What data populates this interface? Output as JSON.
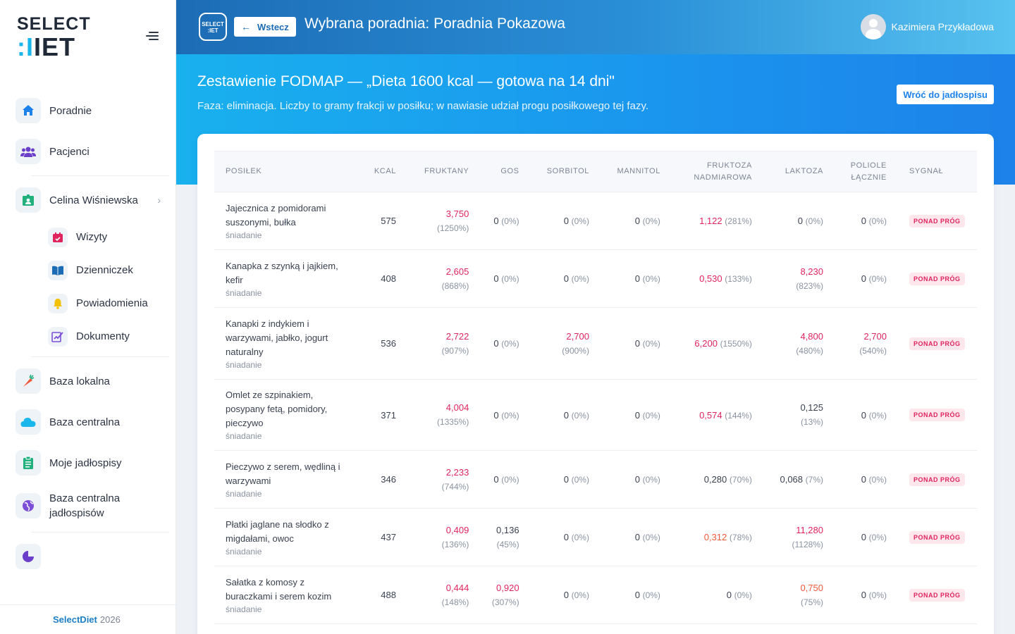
{
  "sidebar": {
    "logo_top": "SELECT",
    "logo_bottom_a": ":I",
    "logo_bottom_b": "IET",
    "items": [
      {
        "label": "Poradnie",
        "icon": "home-icon"
      },
      {
        "label": "Pacjenci",
        "icon": "users-icon"
      }
    ],
    "patient": {
      "label": "Celina Wiśniewska",
      "icon": "id-badge-icon"
    },
    "sub_items": [
      {
        "label": "Wizyty",
        "icon": "calendar-icon"
      },
      {
        "label": "Dzienniczek",
        "icon": "book-icon"
      },
      {
        "label": "Powiadomienia",
        "icon": "bell-icon"
      },
      {
        "label": "Dokumenty",
        "icon": "document-icon"
      }
    ],
    "bases": [
      {
        "label": "Baza lokalna",
        "icon": "carrot-icon"
      },
      {
        "label": "Baza centralna",
        "icon": "cloud-icon"
      },
      {
        "label": "Moje jadłospisy",
        "icon": "clipboard-icon"
      },
      {
        "label": "Baza centralna jadłospisów",
        "icon": "globe-icon"
      }
    ],
    "footer_brand": "SelectDiet",
    "footer_year": "2026"
  },
  "topbar": {
    "logo_text_1": "SELECT",
    "logo_text_2": ":IET",
    "back_label": "Wstecz",
    "title": "Wybrana poradnia: Poradnia Pokazowa",
    "user_name": "Kazimiera Przykładowa"
  },
  "page": {
    "title": "Zestawienie FODMAP — „Dieta 1600 kcal — gotowa na 14 dni\"",
    "subtitle": "Faza: eliminacja. Liczby to gramy frakcji w posiłku; w nawiasie udział progu posiłkowego tej fazy.",
    "back_menu_label": "Wróć do jadłospisu"
  },
  "table": {
    "headers": [
      "POSIŁEK",
      "KCAL",
      "FRUKTANY",
      "GOS",
      "SORBITOL",
      "MANNITOL",
      "FRUKTOZA NADMIAROWA",
      "LAKTOZA",
      "POLIOLE ŁĄCZNIE",
      "SYGNAŁ"
    ],
    "rows": [
      {
        "meal": "Jajecznica z pomidorami suszonymi, bułka",
        "type": "śniadanie",
        "kcal": "575",
        "cells": [
          {
            "v": "3,750",
            "p": "(1250%)",
            "c": "red",
            "s": true
          },
          {
            "v": "0",
            "p": "(0%)",
            "c": "",
            "s": false
          },
          {
            "v": "0",
            "p": "(0%)",
            "c": "",
            "s": false
          },
          {
            "v": "0",
            "p": "(0%)",
            "c": "",
            "s": false
          },
          {
            "v": "1,122",
            "p": "(281%)",
            "c": "red",
            "s": false
          },
          {
            "v": "0",
            "p": "(0%)",
            "c": "",
            "s": false
          },
          {
            "v": "0",
            "p": "(0%)",
            "c": "",
            "s": false
          }
        ],
        "signal": "PONAD PRÓG"
      },
      {
        "meal": "Kanapka z szynką i jajkiem, kefir",
        "type": "śniadanie",
        "kcal": "408",
        "cells": [
          {
            "v": "2,605",
            "p": "(868%)",
            "c": "red",
            "s": true
          },
          {
            "v": "0",
            "p": "(0%)",
            "c": "",
            "s": false
          },
          {
            "v": "0",
            "p": "(0%)",
            "c": "",
            "s": false
          },
          {
            "v": "0",
            "p": "(0%)",
            "c": "",
            "s": false
          },
          {
            "v": "0,530",
            "p": "(133%)",
            "c": "red",
            "s": false
          },
          {
            "v": "8,230",
            "p": "(823%)",
            "c": "red",
            "s": true
          },
          {
            "v": "0",
            "p": "(0%)",
            "c": "",
            "s": false
          }
        ],
        "signal": "PONAD PRÓG"
      },
      {
        "meal": "Kanapki z indykiem i warzywami, jabłko, jogurt naturalny",
        "type": "śniadanie",
        "kcal": "536",
        "cells": [
          {
            "v": "2,722",
            "p": "(907%)",
            "c": "red",
            "s": true
          },
          {
            "v": "0",
            "p": "(0%)",
            "c": "",
            "s": false
          },
          {
            "v": "2,700",
            "p": "(900%)",
            "c": "red",
            "s": true
          },
          {
            "v": "0",
            "p": "(0%)",
            "c": "",
            "s": false
          },
          {
            "v": "6,200",
            "p": "(1550%)",
            "c": "red",
            "s": false
          },
          {
            "v": "4,800",
            "p": "(480%)",
            "c": "red",
            "s": true
          },
          {
            "v": "2,700",
            "p": "(540%)",
            "c": "red",
            "s": true
          }
        ],
        "signal": "PONAD PRÓG"
      },
      {
        "meal": "Omlet ze szpinakiem, posypany fetą, pomidory, pieczywo",
        "type": "śniadanie",
        "kcal": "371",
        "cells": [
          {
            "v": "4,004",
            "p": "(1335%)",
            "c": "red",
            "s": true
          },
          {
            "v": "0",
            "p": "(0%)",
            "c": "",
            "s": false
          },
          {
            "v": "0",
            "p": "(0%)",
            "c": "",
            "s": false
          },
          {
            "v": "0",
            "p": "(0%)",
            "c": "",
            "s": false
          },
          {
            "v": "0,574",
            "p": "(144%)",
            "c": "red",
            "s": false
          },
          {
            "v": "0,125",
            "p": "(13%)",
            "c": "",
            "s": true
          },
          {
            "v": "0",
            "p": "(0%)",
            "c": "",
            "s": false
          }
        ],
        "signal": "PONAD PRÓG"
      },
      {
        "meal": "Pieczywo z serem, wędliną i warzywami",
        "type": "śniadanie",
        "kcal": "346",
        "cells": [
          {
            "v": "2,233",
            "p": "(744%)",
            "c": "red",
            "s": true
          },
          {
            "v": "0",
            "p": "(0%)",
            "c": "",
            "s": false
          },
          {
            "v": "0",
            "p": "(0%)",
            "c": "",
            "s": false
          },
          {
            "v": "0",
            "p": "(0%)",
            "c": "",
            "s": false
          },
          {
            "v": "0,280",
            "p": "(70%)",
            "c": "",
            "s": false
          },
          {
            "v": "0,068",
            "p": "(7%)",
            "c": "",
            "s": false
          },
          {
            "v": "0",
            "p": "(0%)",
            "c": "",
            "s": false
          }
        ],
        "signal": "PONAD PRÓG"
      },
      {
        "meal": "Płatki jaglane na słodko z migdałami, owoc",
        "type": "śniadanie",
        "kcal": "437",
        "cells": [
          {
            "v": "0,409",
            "p": "(136%)",
            "c": "red",
            "s": true
          },
          {
            "v": "0,136",
            "p": "(45%)",
            "c": "",
            "s": true
          },
          {
            "v": "0",
            "p": "(0%)",
            "c": "",
            "s": false
          },
          {
            "v": "0",
            "p": "(0%)",
            "c": "",
            "s": false
          },
          {
            "v": "0,312",
            "p": "(78%)",
            "c": "org",
            "s": false
          },
          {
            "v": "11,280",
            "p": "(1128%)",
            "c": "red",
            "s": true
          },
          {
            "v": "0",
            "p": "(0%)",
            "c": "",
            "s": false
          }
        ],
        "signal": "PONAD PRÓG"
      },
      {
        "meal": "Sałatka z komosy z buraczkami i serem kozim",
        "type": "śniadanie",
        "kcal": "488",
        "cells": [
          {
            "v": "0,444",
            "p": "(148%)",
            "c": "red",
            "s": true
          },
          {
            "v": "0,920",
            "p": "(307%)",
            "c": "red",
            "s": true
          },
          {
            "v": "0",
            "p": "(0%)",
            "c": "",
            "s": false
          },
          {
            "v": "0",
            "p": "(0%)",
            "c": "",
            "s": false
          },
          {
            "v": "0",
            "p": "(0%)",
            "c": "",
            "s": false
          },
          {
            "v": "0,750",
            "p": "(75%)",
            "c": "org",
            "s": true
          },
          {
            "v": "0",
            "p": "(0%)",
            "c": "",
            "s": false
          }
        ],
        "signal": "PONAD PRÓG"
      }
    ]
  },
  "colors": {
    "accent": "#1d82ea",
    "danger": "#e0245e",
    "warning": "#f05a3c"
  }
}
